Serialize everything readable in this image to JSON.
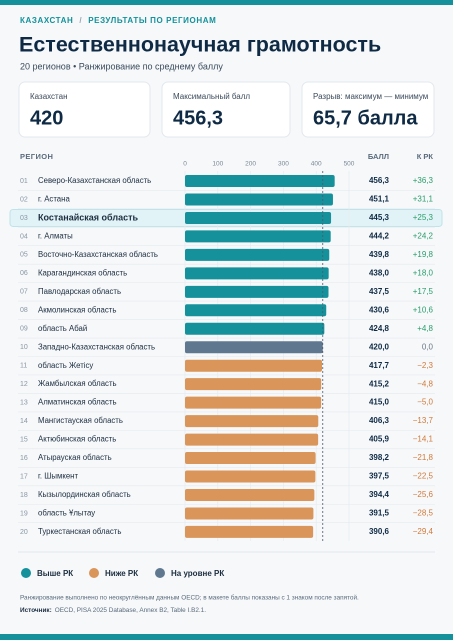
{
  "header": {
    "breadcrumb": [
      "КАЗАХСТАН",
      "РЕЗУЛЬТАТЫ ПО РЕГИОНАМ"
    ],
    "breadcrumb_separator": "/",
    "title": "Естественнонаучная грамотность",
    "subtitle": "20 регионов • Ранжирование по среднему баллу"
  },
  "cards": [
    {
      "label": "Казахстан",
      "value": "420"
    },
    {
      "label": "Максимальный балл",
      "value": "456,3"
    },
    {
      "label": "Разрыв: максимум — минимум",
      "value": "65,7 балла"
    }
  ],
  "chart_data": {
    "type": "bar",
    "orientation": "horizontal",
    "column_headers": {
      "region": "РЕГИОН",
      "score": "БАЛЛ",
      "diff": "К РК"
    },
    "ranks": [
      "01",
      "02",
      "03",
      "04",
      "05",
      "06",
      "07",
      "08",
      "09",
      "10",
      "11",
      "12",
      "13",
      "14",
      "15",
      "16",
      "17",
      "18",
      "19",
      "20"
    ],
    "categories": [
      "Северо-Казахстанская область",
      "г. Астана",
      "Костанайская область",
      "г. Алматы",
      "Восточно-Казахстанская область",
      "Карагандинская область",
      "Павлодарская область",
      "Акмолинская область",
      "область Абай",
      "Западно-Казахстанская область",
      "область Жетісу",
      "Жамбылская область",
      "Алматинская область",
      "Мангистауская область",
      "Актюбинская область",
      "Атырауская область",
      "г. Шымкент",
      "Кызылординская область",
      "область Ұлытау",
      "Туркестанская область"
    ],
    "values": [
      456.3,
      451.1,
      445.3,
      444.2,
      439.8,
      438.0,
      437.5,
      430.6,
      424.8,
      420.0,
      417.7,
      415.2,
      415.0,
      406.3,
      405.9,
      398.2,
      397.5,
      394.4,
      391.5,
      390.6
    ],
    "value_labels": [
      "456,3",
      "451,1",
      "445,3",
      "444,2",
      "439,8",
      "438,0",
      "437,5",
      "430,6",
      "424,8",
      "420,0",
      "417,7",
      "415,2",
      "415,0",
      "406,3",
      "405,9",
      "398,2",
      "397,5",
      "394,4",
      "391,5",
      "390,6"
    ],
    "diffs": [
      36.3,
      31.1,
      25.3,
      24.2,
      19.8,
      18.0,
      17.5,
      10.6,
      4.8,
      0.0,
      -2.3,
      -4.8,
      -5.0,
      -13.7,
      -14.1,
      -21.8,
      -22.5,
      -25.6,
      -28.5,
      -29.4
    ],
    "diff_labels": [
      "+36,3",
      "+31,1",
      "+25,3",
      "+24,2",
      "+19,8",
      "+18,0",
      "+17,5",
      "+10,6",
      "+4,8",
      "0,0",
      "−2,3",
      "−4,8",
      "−5,0",
      "−13,7",
      "−14,1",
      "−21,8",
      "−22,5",
      "−25,6",
      "−28,5",
      "−29,4"
    ],
    "bar_colors": [
      "#14919b",
      "#14919b",
      "#14919b",
      "#14919b",
      "#14919b",
      "#14919b",
      "#14919b",
      "#14919b",
      "#14919b",
      "#5f7890",
      "#d9955a",
      "#d9955a",
      "#d9955a",
      "#d9955a",
      "#d9955a",
      "#d9955a",
      "#d9955a",
      "#d9955a",
      "#d9955a",
      "#d9955a"
    ],
    "diff_colors": [
      "#2a9d6a",
      "#2a9d6a",
      "#2a9d6a",
      "#2a9d6a",
      "#2a9d6a",
      "#2a9d6a",
      "#2a9d6a",
      "#2a9d6a",
      "#2a9d6a",
      "#6b7785",
      "#d07a3a",
      "#d07a3a",
      "#d07a3a",
      "#d07a3a",
      "#d07a3a",
      "#d07a3a",
      "#d07a3a",
      "#d07a3a",
      "#d07a3a",
      "#d07a3a"
    ],
    "highlight_index": 2,
    "reference_value": 420,
    "xlim": [
      0,
      500
    ],
    "xticks": [
      0,
      100,
      200,
      300,
      400,
      500
    ]
  },
  "legend": [
    {
      "name": "Выше РК",
      "color": "#14919b"
    },
    {
      "name": "Ниже РК",
      "color": "#d9955a"
    },
    {
      "name": "На уровне РК",
      "color": "#5f7890"
    }
  ],
  "footer": {
    "note": "Ранжирование выполнено по неокруглённым данным OECD; в макете баллы показаны с 1 знаком после запятой.",
    "source_label": "Источник:",
    "source": "OECD, PISA 2025 Database, Annex B2, Table I.B2.1."
  }
}
